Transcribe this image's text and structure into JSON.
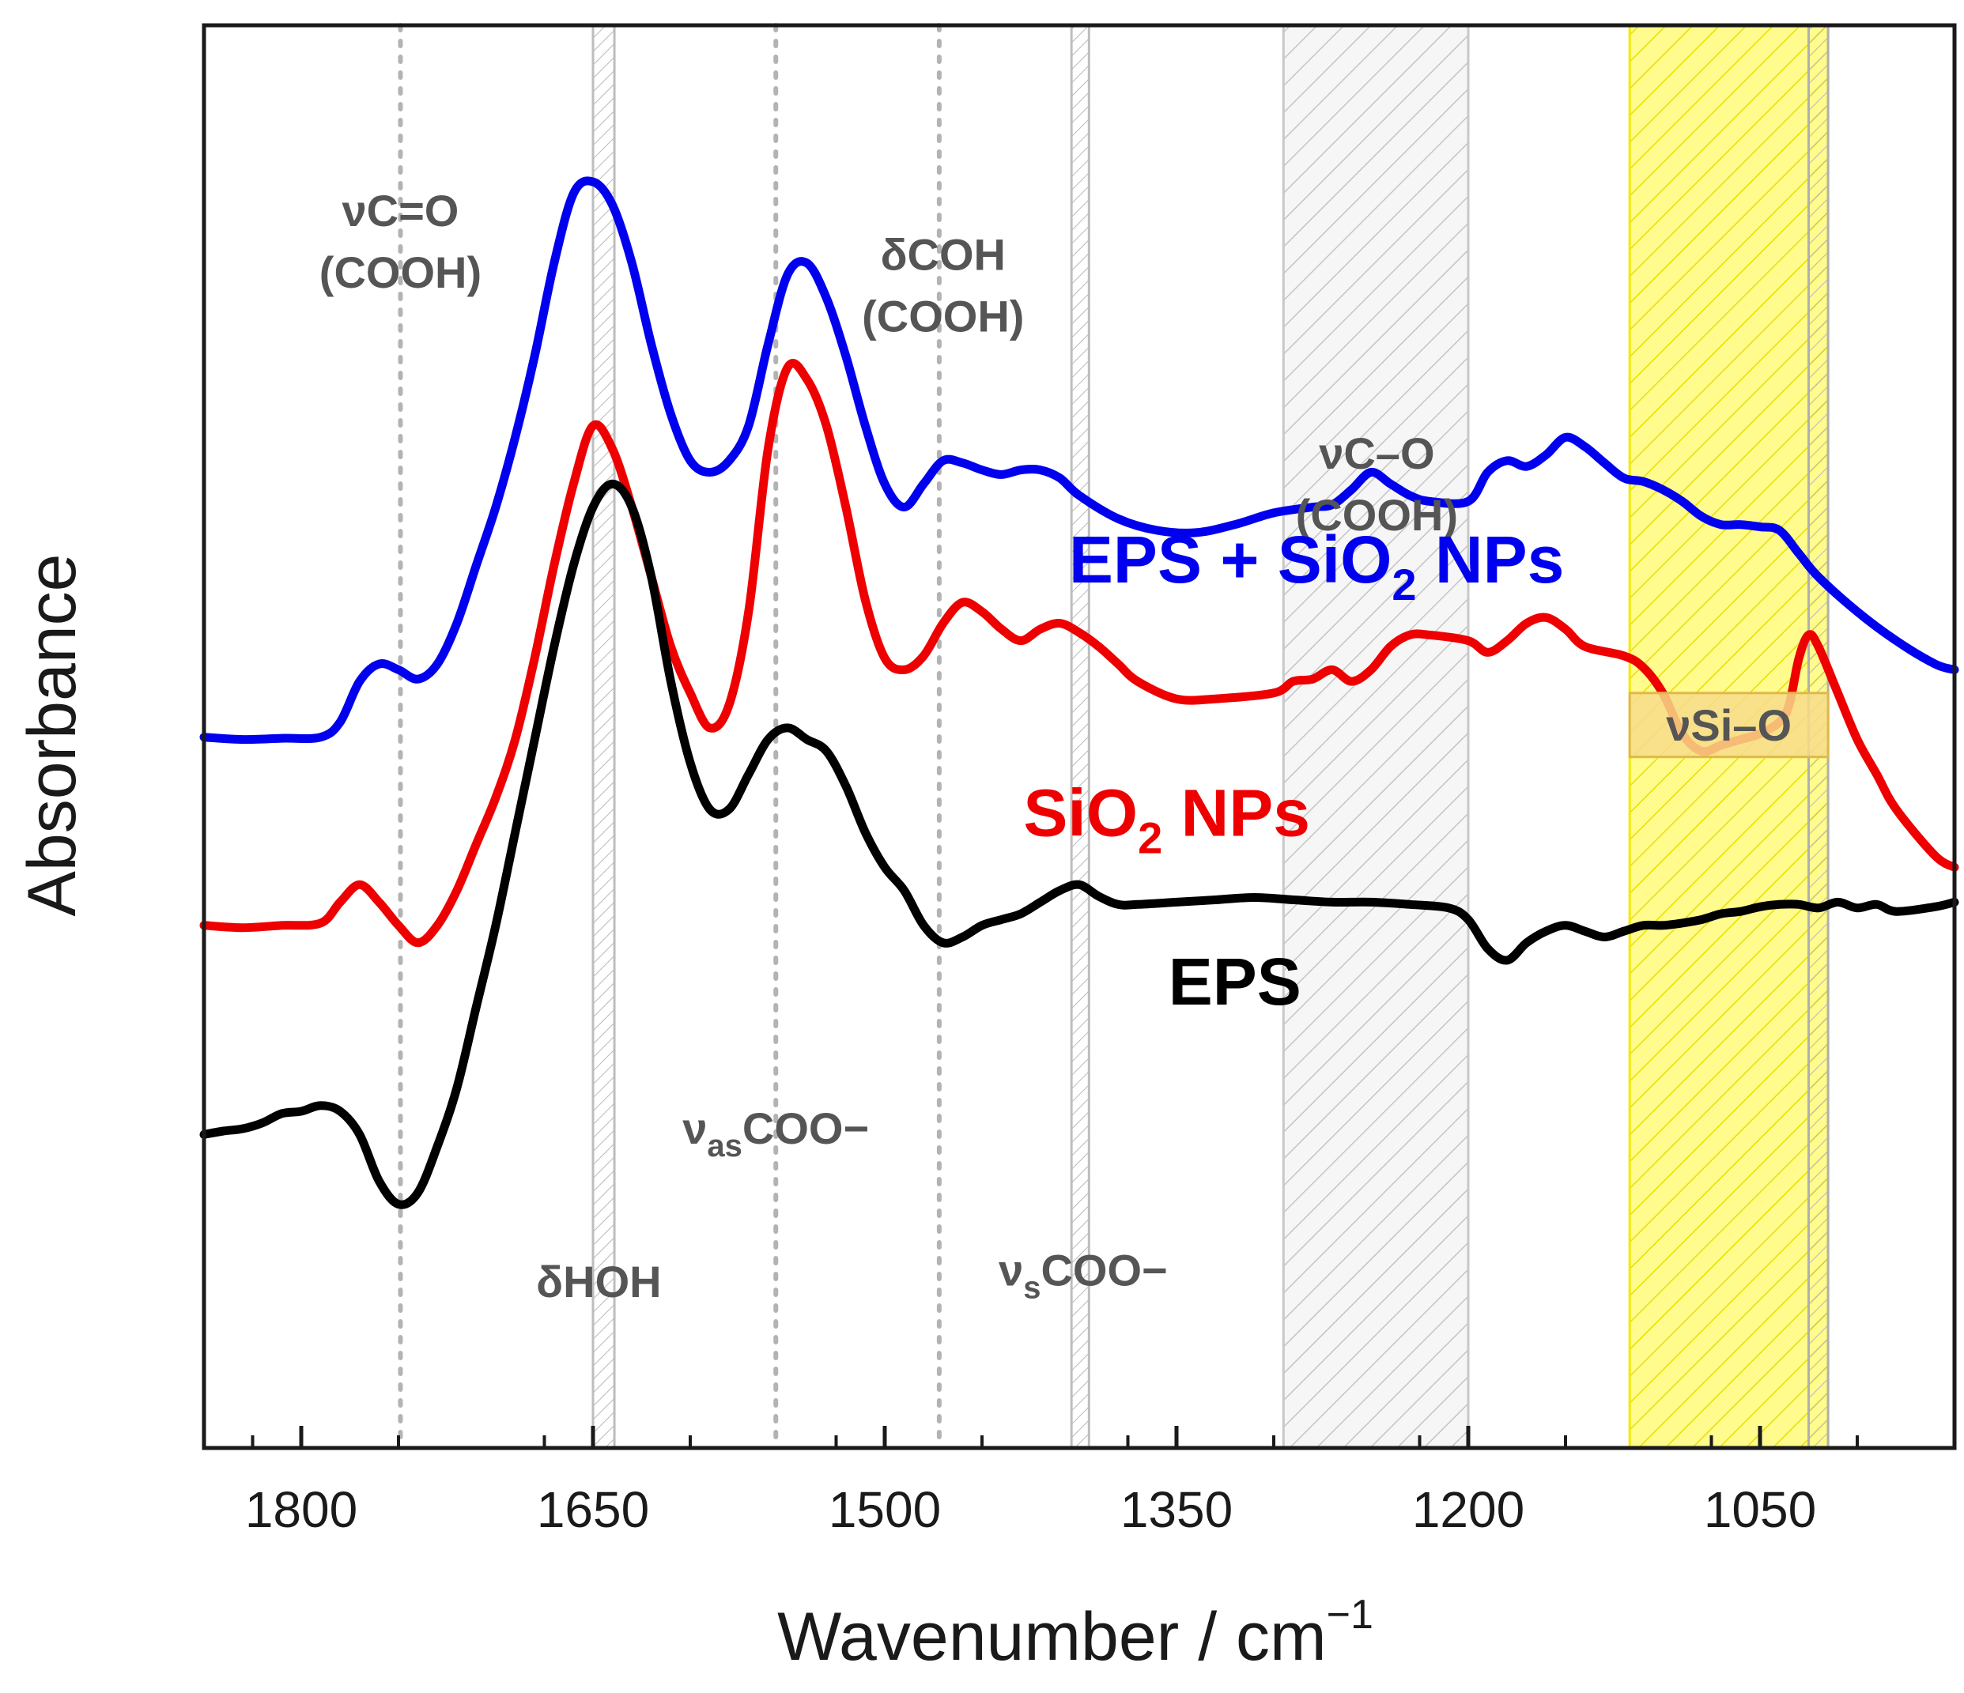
{
  "chart_data": {
    "type": "line",
    "title": "",
    "xlabel": "Wavenumber / cm",
    "xlabel_sup": "−1",
    "ylabel": "Absorbance",
    "xlim": [
      1850,
      950
    ],
    "ylim": [
      0,
      10
    ],
    "grid": false,
    "x_ticks": [
      1800,
      1650,
      1500,
      1350,
      1200,
      1050
    ],
    "x_tick_labels": [
      "1800",
      "1650",
      "1500",
      "1350",
      "1200",
      "1050"
    ],
    "series": [
      {
        "name": "EPS + SiO2 NPs",
        "label_main": "EPS + SiO",
        "label_sub": "2",
        "label_tail": " NPs",
        "color": "#0000ee",
        "points": [
          [
            1850,
            5.22
          ],
          [
            1830,
            5.2
          ],
          [
            1810,
            5.21
          ],
          [
            1790,
            5.22
          ],
          [
            1780,
            5.35
          ],
          [
            1770,
            5.7
          ],
          [
            1760,
            5.85
          ],
          [
            1750,
            5.8
          ],
          [
            1740,
            5.72
          ],
          [
            1730,
            5.85
          ],
          [
            1720,
            6.2
          ],
          [
            1710,
            6.7
          ],
          [
            1700,
            7.2
          ],
          [
            1690,
            7.8
          ],
          [
            1680,
            8.5
          ],
          [
            1670,
            9.3
          ],
          [
            1660,
            9.9
          ],
          [
            1650,
            10.0
          ],
          [
            1640,
            9.8
          ],
          [
            1630,
            9.3
          ],
          [
            1620,
            8.6
          ],
          [
            1610,
            8.0
          ],
          [
            1600,
            7.6
          ],
          [
            1590,
            7.5
          ],
          [
            1580,
            7.6
          ],
          [
            1570,
            7.9
          ],
          [
            1560,
            8.6
          ],
          [
            1550,
            9.2
          ],
          [
            1540,
            9.3
          ],
          [
            1530,
            9.0
          ],
          [
            1520,
            8.5
          ],
          [
            1510,
            7.9
          ],
          [
            1500,
            7.4
          ],
          [
            1490,
            7.2
          ],
          [
            1480,
            7.4
          ],
          [
            1470,
            7.6
          ],
          [
            1460,
            7.58
          ],
          [
            1450,
            7.52
          ],
          [
            1440,
            7.48
          ],
          [
            1430,
            7.52
          ],
          [
            1420,
            7.52
          ],
          [
            1410,
            7.45
          ],
          [
            1400,
            7.3
          ],
          [
            1380,
            7.1
          ],
          [
            1360,
            7.0
          ],
          [
            1340,
            6.98
          ],
          [
            1320,
            7.05
          ],
          [
            1300,
            7.15
          ],
          [
            1280,
            7.2
          ],
          [
            1270,
            7.22
          ],
          [
            1260,
            7.35
          ],
          [
            1250,
            7.5
          ],
          [
            1240,
            7.4
          ],
          [
            1230,
            7.3
          ],
          [
            1220,
            7.25
          ],
          [
            1200,
            7.25
          ],
          [
            1190,
            7.5
          ],
          [
            1180,
            7.6
          ],
          [
            1170,
            7.55
          ],
          [
            1160,
            7.65
          ],
          [
            1150,
            7.8
          ],
          [
            1140,
            7.72
          ],
          [
            1130,
            7.58
          ],
          [
            1120,
            7.45
          ],
          [
            1110,
            7.42
          ],
          [
            1100,
            7.35
          ],
          [
            1090,
            7.25
          ],
          [
            1080,
            7.12
          ],
          [
            1070,
            7.05
          ],
          [
            1060,
            7.05
          ],
          [
            1050,
            7.03
          ],
          [
            1040,
            7.0
          ],
          [
            1030,
            6.8
          ],
          [
            1020,
            6.6
          ],
          [
            1000,
            6.3
          ],
          [
            980,
            6.05
          ],
          [
            960,
            5.85
          ],
          [
            950,
            5.8
          ]
        ]
      },
      {
        "name": "SiO2 NPs",
        "label_main": "SiO",
        "label_sub": "2",
        "label_tail": " NPs",
        "color": "#ee0000",
        "points": [
          [
            1850,
            3.6
          ],
          [
            1830,
            3.58
          ],
          [
            1810,
            3.6
          ],
          [
            1790,
            3.62
          ],
          [
            1780,
            3.8
          ],
          [
            1770,
            3.95
          ],
          [
            1760,
            3.8
          ],
          [
            1750,
            3.6
          ],
          [
            1740,
            3.45
          ],
          [
            1730,
            3.6
          ],
          [
            1720,
            3.9
          ],
          [
            1710,
            4.3
          ],
          [
            1700,
            4.7
          ],
          [
            1690,
            5.2
          ],
          [
            1680,
            5.9
          ],
          [
            1670,
            6.7
          ],
          [
            1660,
            7.4
          ],
          [
            1650,
            7.9
          ],
          [
            1640,
            7.7
          ],
          [
            1630,
            7.2
          ],
          [
            1620,
            6.6
          ],
          [
            1610,
            6.0
          ],
          [
            1600,
            5.6
          ],
          [
            1590,
            5.3
          ],
          [
            1580,
            5.5
          ],
          [
            1570,
            6.3
          ],
          [
            1560,
            7.7
          ],
          [
            1550,
            8.4
          ],
          [
            1540,
            8.3
          ],
          [
            1530,
            7.9
          ],
          [
            1520,
            7.2
          ],
          [
            1510,
            6.4
          ],
          [
            1500,
            5.9
          ],
          [
            1490,
            5.8
          ],
          [
            1480,
            5.92
          ],
          [
            1470,
            6.2
          ],
          [
            1460,
            6.38
          ],
          [
            1450,
            6.3
          ],
          [
            1440,
            6.15
          ],
          [
            1430,
            6.05
          ],
          [
            1420,
            6.15
          ],
          [
            1410,
            6.2
          ],
          [
            1400,
            6.12
          ],
          [
            1390,
            6.0
          ],
          [
            1380,
            5.85
          ],
          [
            1370,
            5.7
          ],
          [
            1350,
            5.55
          ],
          [
            1330,
            5.55
          ],
          [
            1300,
            5.6
          ],
          [
            1290,
            5.7
          ],
          [
            1280,
            5.72
          ],
          [
            1270,
            5.8
          ],
          [
            1260,
            5.7
          ],
          [
            1250,
            5.8
          ],
          [
            1240,
            6.0
          ],
          [
            1230,
            6.1
          ],
          [
            1220,
            6.1
          ],
          [
            1200,
            6.05
          ],
          [
            1190,
            5.95
          ],
          [
            1180,
            6.05
          ],
          [
            1170,
            6.2
          ],
          [
            1160,
            6.25
          ],
          [
            1150,
            6.15
          ],
          [
            1140,
            6.0
          ],
          [
            1120,
            5.92
          ],
          [
            1110,
            5.82
          ],
          [
            1100,
            5.6
          ],
          [
            1090,
            5.25
          ],
          [
            1080,
            5.1
          ],
          [
            1070,
            5.15
          ],
          [
            1060,
            5.2
          ],
          [
            1050,
            5.25
          ],
          [
            1040,
            5.35
          ],
          [
            1035,
            5.5
          ],
          [
            1030,
            5.9
          ],
          [
            1025,
            6.1
          ],
          [
            1020,
            6.0
          ],
          [
            1010,
            5.6
          ],
          [
            1000,
            5.2
          ],
          [
            990,
            4.9
          ],
          [
            980,
            4.6
          ],
          [
            960,
            4.2
          ],
          [
            950,
            4.1
          ]
        ]
      },
      {
        "name": "EPS",
        "label_main": "EPS",
        "label_sub": "",
        "label_tail": "",
        "color": "#000000",
        "points": [
          [
            1850,
            1.8
          ],
          [
            1840,
            1.83
          ],
          [
            1830,
            1.85
          ],
          [
            1820,
            1.9
          ],
          [
            1810,
            1.98
          ],
          [
            1800,
            2.0
          ],
          [
            1790,
            2.05
          ],
          [
            1780,
            2.0
          ],
          [
            1770,
            1.8
          ],
          [
            1760,
            1.4
          ],
          [
            1750,
            1.2
          ],
          [
            1740,
            1.3
          ],
          [
            1730,
            1.7
          ],
          [
            1720,
            2.2
          ],
          [
            1710,
            2.9
          ],
          [
            1700,
            3.6
          ],
          [
            1690,
            4.4
          ],
          [
            1680,
            5.2
          ],
          [
            1670,
            6.0
          ],
          [
            1660,
            6.7
          ],
          [
            1650,
            7.2
          ],
          [
            1640,
            7.4
          ],
          [
            1630,
            7.2
          ],
          [
            1620,
            6.6
          ],
          [
            1610,
            5.7
          ],
          [
            1600,
            5.0
          ],
          [
            1590,
            4.6
          ],
          [
            1580,
            4.6
          ],
          [
            1570,
            4.9
          ],
          [
            1560,
            5.2
          ],
          [
            1550,
            5.3
          ],
          [
            1540,
            5.2
          ],
          [
            1530,
            5.1
          ],
          [
            1520,
            4.8
          ],
          [
            1510,
            4.4
          ],
          [
            1500,
            4.1
          ],
          [
            1490,
            3.9
          ],
          [
            1480,
            3.6
          ],
          [
            1470,
            3.45
          ],
          [
            1460,
            3.5
          ],
          [
            1450,
            3.6
          ],
          [
            1440,
            3.65
          ],
          [
            1430,
            3.7
          ],
          [
            1420,
            3.8
          ],
          [
            1410,
            3.9
          ],
          [
            1400,
            3.95
          ],
          [
            1390,
            3.85
          ],
          [
            1380,
            3.78
          ],
          [
            1370,
            3.78
          ],
          [
            1350,
            3.8
          ],
          [
            1330,
            3.82
          ],
          [
            1310,
            3.84
          ],
          [
            1290,
            3.82
          ],
          [
            1270,
            3.8
          ],
          [
            1250,
            3.8
          ],
          [
            1230,
            3.78
          ],
          [
            1210,
            3.75
          ],
          [
            1200,
            3.65
          ],
          [
            1190,
            3.4
          ],
          [
            1180,
            3.3
          ],
          [
            1170,
            3.45
          ],
          [
            1160,
            3.55
          ],
          [
            1150,
            3.6
          ],
          [
            1140,
            3.55
          ],
          [
            1130,
            3.5
          ],
          [
            1120,
            3.55
          ],
          [
            1110,
            3.6
          ],
          [
            1100,
            3.6
          ],
          [
            1090,
            3.62
          ],
          [
            1080,
            3.65
          ],
          [
            1070,
            3.7
          ],
          [
            1060,
            3.72
          ],
          [
            1050,
            3.76
          ],
          [
            1040,
            3.78
          ],
          [
            1030,
            3.78
          ],
          [
            1020,
            3.75
          ],
          [
            1010,
            3.8
          ],
          [
            1000,
            3.75
          ],
          [
            990,
            3.78
          ],
          [
            980,
            3.72
          ],
          [
            960,
            3.76
          ],
          [
            950,
            3.8
          ]
        ]
      }
    ],
    "dashed_reference_lines": [
      1749,
      1556,
      1472
    ],
    "shaded_bands": [
      {
        "x0": 1650,
        "x1": 1639,
        "fill": "#ffffff",
        "hatch": "#bdbdbd",
        "border": "#bdbdbd"
      },
      {
        "x0": 1404,
        "x1": 1395,
        "fill": "#ffffff",
        "hatch": "#bdbdbd",
        "border": "#bdbdbd"
      },
      {
        "x0": 1295,
        "x1": 1200,
        "fill": "#f6f6f6",
        "hatch": "#c8c8c8",
        "border": "#c8c8c8"
      },
      {
        "x0": 1117,
        "x1": 1015,
        "fill": "#fffb8c",
        "hatch": "#e8e000",
        "border": "#f0ea00"
      },
      {
        "x0": 1025,
        "x1": 1015,
        "fill": "none",
        "hatch": "#b0b0b0",
        "border": "#b0b0b0"
      }
    ],
    "annotations": [
      {
        "id": "vco",
        "lines": [
          "νC=O",
          "(COOH)"
        ],
        "x": 1749,
        "y": 9.62
      },
      {
        "id": "dcoh",
        "lines": [
          "δCOH",
          "(COOH)"
        ],
        "x": 1470,
        "y": 9.24
      },
      {
        "id": "vco2",
        "lines": [
          "νC–O",
          "(COOH)"
        ],
        "x": 1247,
        "y": 7.53
      },
      {
        "id": "dhoh",
        "lines": [
          "δHOH"
        ],
        "x": 1647,
        "y": 0.4
      },
      {
        "id": "vasCOO",
        "main": "ν",
        "sub": "as",
        "tail": "COO−",
        "x": 1556,
        "y": 1.72
      },
      {
        "id": "vsCOO",
        "main": "ν",
        "sub": "s",
        "tail": "COO−",
        "x": 1398,
        "y": 0.5
      }
    ],
    "si_label": {
      "text": "νSi–O",
      "x0": 1117,
      "x1": 1015,
      "y0": 5.6,
      "y1": 5.05
    }
  }
}
